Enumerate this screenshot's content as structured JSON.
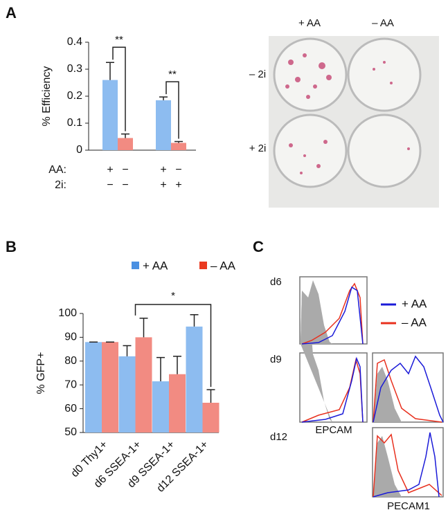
{
  "panel_labels": [
    "A",
    "B",
    "C"
  ],
  "chart_data": [
    {
      "type": "bar",
      "y_label": "% Efficiency",
      "values": [
        0.26,
        0.045,
        0.185,
        0.027
      ],
      "errors": [
        0.065,
        0.015,
        0.012,
        0.005
      ],
      "colors": [
        "#8dbcf0",
        "#f28b82",
        "#8dbcf0",
        "#f28b82"
      ],
      "ylim": [
        0,
        0.4
      ],
      "yticks": [
        0,
        0.1,
        0.2,
        0.3,
        0.4
      ],
      "conditions": [
        {
          "label": "AA:",
          "marks": [
            "+",
            "−",
            "+",
            "−"
          ]
        },
        {
          "label": "2i:",
          "marks": [
            "−",
            "−",
            "+",
            "+"
          ]
        }
      ],
      "significance": [
        "**",
        "**"
      ]
    },
    {
      "type": "grouped-bar",
      "y_label": "% GFP+",
      "categories": [
        "d0 Thy1+",
        "d6 SSEA-1+",
        "d9 SSEA-1+",
        "d12 SSEA-1+"
      ],
      "series": [
        {
          "name": "+ AA",
          "color": "#8dbcf0",
          "values": [
            88,
            82,
            71.5,
            94.5
          ],
          "errors": [
            0,
            4.5,
            10,
            5
          ]
        },
        {
          "name": "– AA",
          "color": "#f28b82",
          "values": [
            88,
            90,
            74.5,
            62.5
          ],
          "errors": [
            0,
            8,
            7.5,
            5.5
          ]
        }
      ],
      "legend_colors": [
        "#4a90e2",
        "#ea3a20"
      ],
      "ylim": [
        50,
        100
      ],
      "yticks": [
        50,
        60,
        70,
        80,
        90,
        100
      ],
      "significance": "*"
    }
  ],
  "plate_image": {
    "columns": [
      "+ AA",
      "– AA"
    ],
    "rows": [
      "– 2i",
      "+ 2i"
    ]
  },
  "flow": {
    "timepoints": [
      "d6",
      "d9",
      "d12"
    ],
    "markers": [
      "EPCAM",
      "PECAM1"
    ],
    "legend": [
      {
        "name": "+ AA",
        "color": "#1a1ad8"
      },
      {
        "name": "– AA",
        "color": "#e8301e"
      }
    ]
  }
}
